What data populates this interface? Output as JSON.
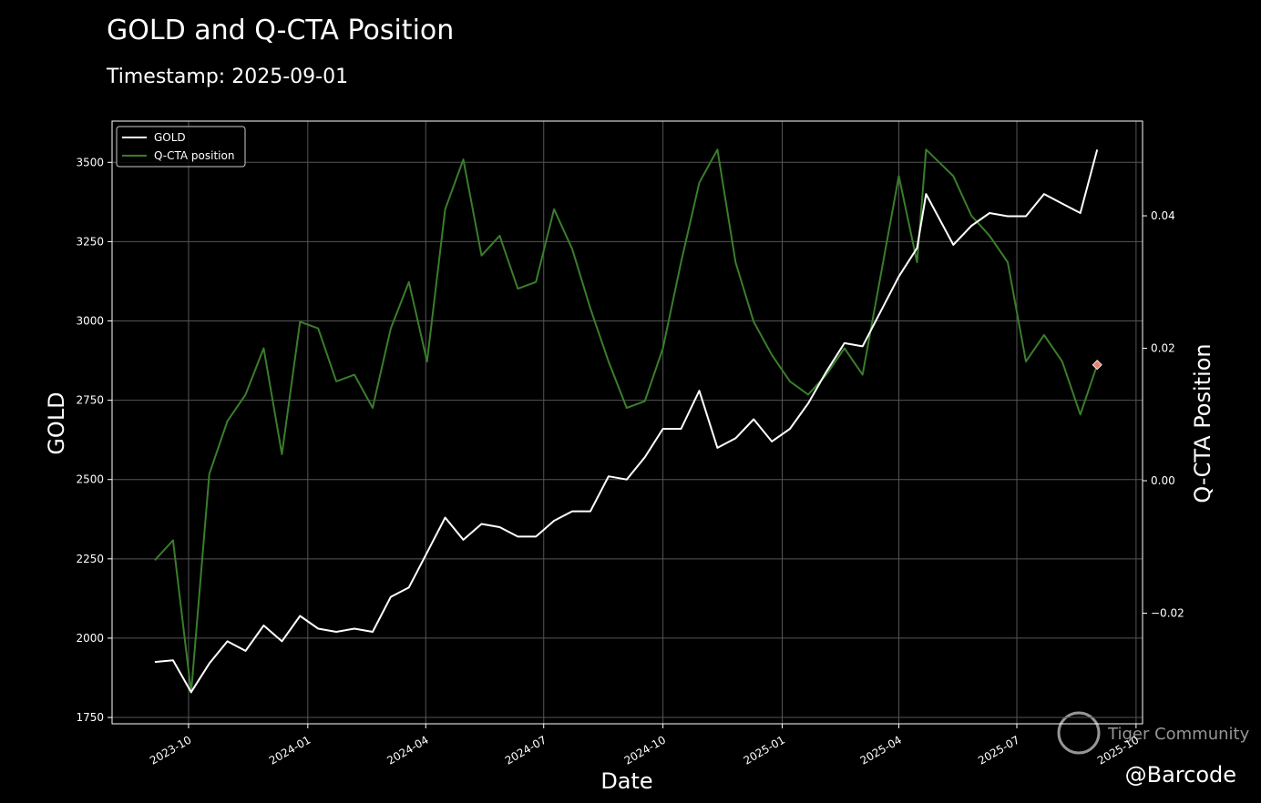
{
  "chart_data": {
    "type": "line",
    "title": "GOLD and Q-CTA Position",
    "subtitle": "Timestamp: 2025-09-01",
    "x_label": "Date",
    "y_label": "GOLD",
    "y2_label": "Q-CTA Position",
    "x": [
      "2023-09-05",
      "2023-09-19",
      "2023-10-03",
      "2023-10-17",
      "2023-10-31",
      "2023-11-14",
      "2023-11-28",
      "2023-12-12",
      "2023-12-26",
      "2024-01-09",
      "2024-01-23",
      "2024-02-06",
      "2024-02-20",
      "2024-03-05",
      "2024-03-19",
      "2024-04-02",
      "2024-04-16",
      "2024-04-30",
      "2024-05-14",
      "2024-05-28",
      "2024-06-11",
      "2024-06-25",
      "2024-07-09",
      "2024-07-23",
      "2024-08-06",
      "2024-08-20",
      "2024-09-03",
      "2024-09-17",
      "2024-10-01",
      "2024-10-15",
      "2024-10-29",
      "2024-11-12",
      "2024-11-26",
      "2024-12-10",
      "2024-12-24",
      "2025-01-07",
      "2025-01-21",
      "2025-02-04",
      "2025-02-18",
      "2025-03-04",
      "2025-03-18",
      "2025-04-01",
      "2025-04-15",
      "2025-04-22",
      "2025-05-13",
      "2025-05-27",
      "2025-06-10",
      "2025-06-24",
      "2025-07-08",
      "2025-07-22",
      "2025-08-05",
      "2025-08-19",
      "2025-09-01"
    ],
    "series": [
      {
        "name": "GOLD",
        "color": "#ffffff",
        "axis": "y",
        "values": [
          1925,
          1930,
          1830,
          1920,
          1990,
          1960,
          2040,
          1990,
          2070,
          2030,
          2020,
          2030,
          2020,
          2130,
          2160,
          2270,
          2380,
          2310,
          2360,
          2350,
          2320,
          2320,
          2370,
          2400,
          2400,
          2510,
          2500,
          2570,
          2660,
          2660,
          2780,
          2600,
          2630,
          2690,
          2620,
          2660,
          2740,
          2840,
          2930,
          2920,
          3030,
          3140,
          3230,
          3400,
          3240,
          3300,
          3340,
          3330,
          3330,
          3400,
          3370,
          3340,
          3540
        ]
      },
      {
        "name": "Q-CTA position",
        "color": "#3a7d2c",
        "axis": "y2",
        "end_marker_color": "#e9806e",
        "values": [
          -0.012,
          -0.009,
          -0.032,
          0.001,
          0.009,
          0.013,
          0.02,
          0.004,
          0.024,
          0.023,
          0.015,
          0.016,
          0.011,
          0.023,
          0.03,
          0.018,
          0.041,
          0.0485,
          0.034,
          0.037,
          0.029,
          0.03,
          0.041,
          0.035,
          0.026,
          0.018,
          0.011,
          0.012,
          0.02,
          0.033,
          0.045,
          0.05,
          0.033,
          0.024,
          0.019,
          0.015,
          0.013,
          0.016,
          0.02,
          0.016,
          0.031,
          0.046,
          0.033,
          0.05,
          0.046,
          0.04,
          0.037,
          0.033,
          0.018,
          0.022,
          0.018,
          0.01,
          0.0175
        ]
      }
    ],
    "xlim": [
      "2023-08-03",
      "2025-10-06"
    ],
    "xticks": [
      {
        "value": "2023-10-01",
        "label": "2023-10"
      },
      {
        "value": "2024-01-01",
        "label": "2024-01"
      },
      {
        "value": "2024-04-01",
        "label": "2024-04"
      },
      {
        "value": "2024-07-01",
        "label": "2024-07"
      },
      {
        "value": "2024-10-01",
        "label": "2024-10"
      },
      {
        "value": "2025-01-01",
        "label": "2025-01"
      },
      {
        "value": "2025-04-01",
        "label": "2025-04"
      },
      {
        "value": "2025-07-01",
        "label": "2025-07"
      },
      {
        "value": "2025-10-01",
        "label": "2025-10"
      }
    ],
    "ylim": [
      1730,
      3630
    ],
    "yticks": [
      1750,
      2000,
      2250,
      2500,
      2750,
      3000,
      3250,
      3500
    ],
    "y2lim": [
      -0.0367,
      0.0543
    ],
    "y2ticks": [
      {
        "value": -0.02,
        "label": "−0.02"
      },
      {
        "value": 0,
        "label": "0.00"
      },
      {
        "value": 0.02,
        "label": "0.02"
      },
      {
        "value": 0.04,
        "label": "0.04"
      }
    ],
    "grid": true,
    "legend": "upper left",
    "watermark": [
      "Tiger Community",
      "@Barcode"
    ]
  }
}
